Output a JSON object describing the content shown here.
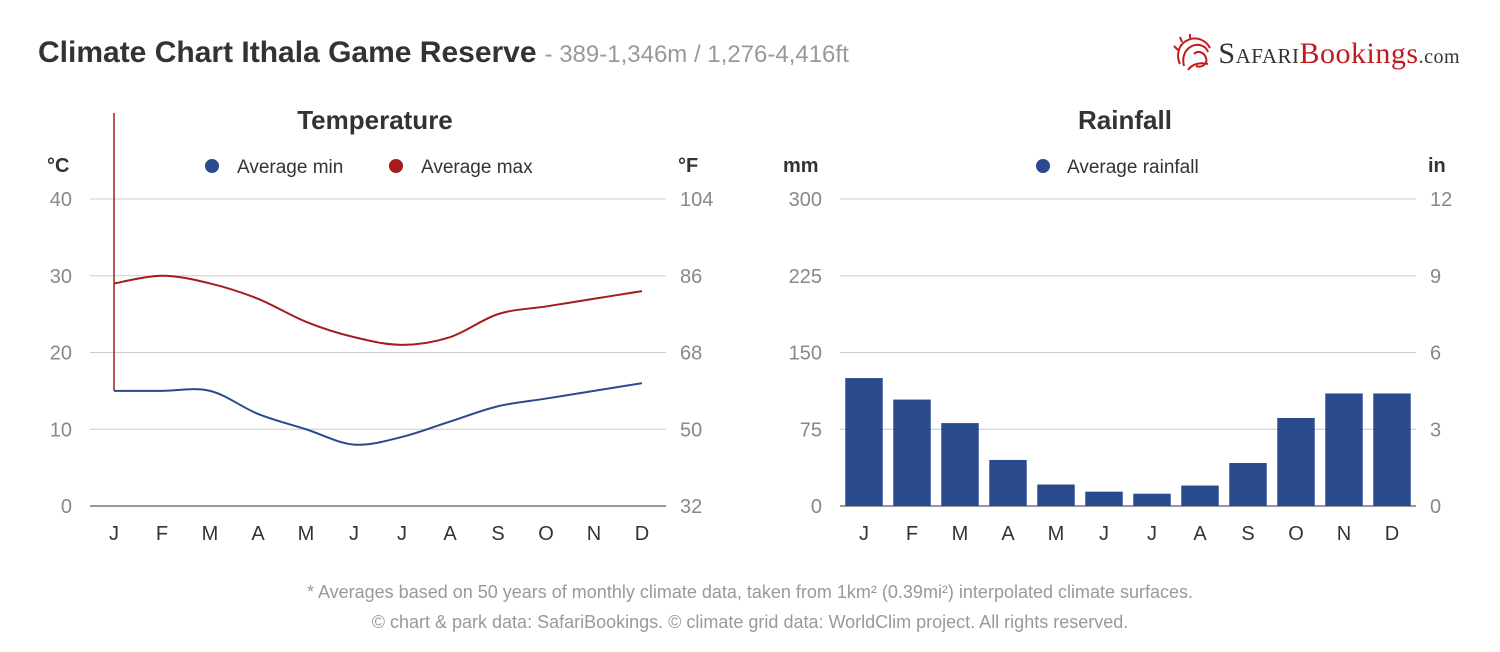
{
  "header": {
    "title": "Climate Chart Ithala Game Reserve",
    "subtitle": "- 389-1,346m / 1,276-4,416ft"
  },
  "logo": {
    "part1": "Safari",
    "part2": "Bookings",
    "part3": ".com"
  },
  "chart_data": [
    {
      "type": "line",
      "title": "Temperature",
      "ylabel_left": "°C",
      "ylabel_right": "°F",
      "categories": [
        "J",
        "F",
        "M",
        "A",
        "M",
        "J",
        "J",
        "A",
        "S",
        "O",
        "N",
        "D"
      ],
      "yticks_left": [
        "40",
        "30",
        "20",
        "10",
        "0"
      ],
      "yticks_right": [
        "104",
        "86",
        "68",
        "50",
        "32"
      ],
      "ylim": [
        0,
        40
      ],
      "grid": true,
      "legend_position": "top",
      "series": [
        {
          "name": "Average min",
          "color": "#2a4a8e",
          "values": [
            15,
            15,
            15,
            12,
            10,
            8,
            9,
            11,
            13,
            14,
            15,
            16
          ]
        },
        {
          "name": "Average max",
          "color": "#a31d1d",
          "values": [
            29,
            30,
            29,
            27,
            24,
            22,
            21,
            22,
            25,
            26,
            27,
            28
          ]
        }
      ]
    },
    {
      "type": "bar",
      "title": "Rainfall",
      "ylabel_left": "mm",
      "ylabel_right": "in",
      "categories": [
        "J",
        "F",
        "M",
        "A",
        "M",
        "J",
        "J",
        "A",
        "S",
        "O",
        "N",
        "D"
      ],
      "yticks_left": [
        "300",
        "225",
        "150",
        "75",
        "0"
      ],
      "yticks_right": [
        "12",
        "9",
        "6",
        "3",
        "0"
      ],
      "ylim": [
        0,
        300
      ],
      "grid": true,
      "legend_position": "top",
      "series": [
        {
          "name": "Average rainfall",
          "color": "#2a4a8e",
          "values": [
            125,
            104,
            81,
            45,
            21,
            14,
            12,
            20,
            42,
            86,
            110,
            110
          ]
        }
      ]
    }
  ],
  "footer": {
    "line1": "* Averages based on 50 years of monthly climate data, taken from 1km² (0.39mi²) interpolated climate surfaces.",
    "line2": "© chart & park data: SafariBookings. © climate grid data: WorldClim project. All rights reserved."
  }
}
